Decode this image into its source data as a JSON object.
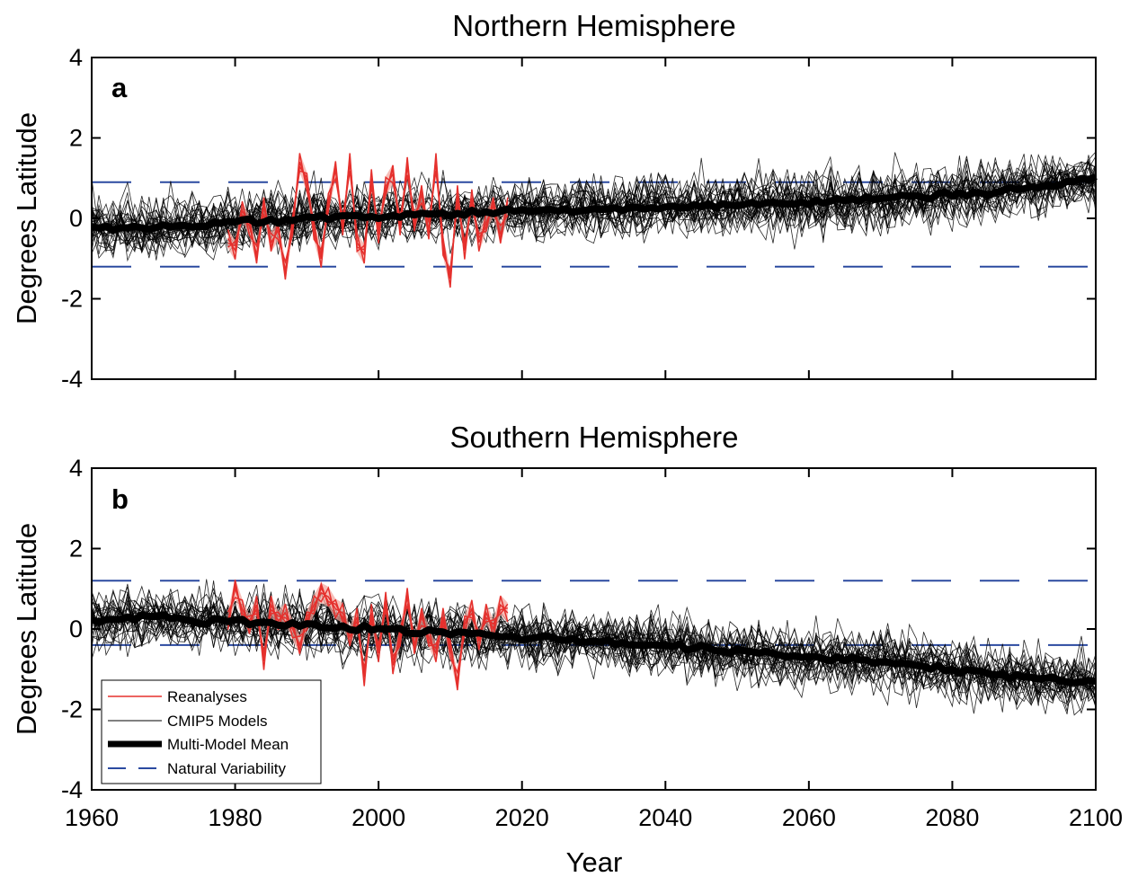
{
  "chart_data": [
    {
      "type": "line",
      "title": "Northern Hemisphere",
      "panel_label": "a",
      "xlabel": "",
      "ylabel": "Degrees Latitude",
      "xlim": [
        1960,
        2100
      ],
      "ylim": [
        -4,
        4
      ],
      "x_ticks": [
        1960,
        1980,
        2000,
        2020,
        2040,
        2060,
        2080,
        2100
      ],
      "y_ticks": [
        4,
        2,
        0,
        -2,
        -4
      ],
      "grid": false,
      "natural_variability": [
        -1.2,
        0.9
      ],
      "series": [
        {
          "name": "Multi-Model Mean",
          "color": "#000000",
          "x": [
            1960,
            1965,
            1970,
            1975,
            1980,
            1985,
            1990,
            1995,
            2000,
            2005,
            2010,
            2015,
            2020,
            2025,
            2030,
            2035,
            2040,
            2045,
            2050,
            2055,
            2060,
            2065,
            2070,
            2075,
            2080,
            2085,
            2090,
            2095,
            2100
          ],
          "values": [
            -0.2,
            -0.25,
            -0.2,
            -0.15,
            -0.1,
            -0.05,
            0.0,
            0.05,
            0.05,
            0.1,
            0.1,
            0.15,
            0.2,
            0.2,
            0.25,
            0.25,
            0.3,
            0.3,
            0.35,
            0.35,
            0.4,
            0.45,
            0.5,
            0.55,
            0.6,
            0.65,
            0.75,
            0.85,
            1.0
          ]
        },
        {
          "name": "Reanalyses",
          "color": "#e5302d",
          "x": [
            1979,
            1980,
            1981,
            1982,
            1983,
            1984,
            1985,
            1986,
            1987,
            1988,
            1989,
            1990,
            1991,
            1992,
            1993,
            1994,
            1995,
            1996,
            1997,
            1998,
            1999,
            2000,
            2001,
            2002,
            2003,
            2004,
            2005,
            2006,
            2007,
            2008,
            2009,
            2010,
            2011,
            2012,
            2013,
            2014,
            2015,
            2016,
            2017,
            2018
          ],
          "values": [
            -0.5,
            -0.8,
            0.2,
            -0.2,
            -0.9,
            0.3,
            -0.6,
            -0.3,
            -1.3,
            -0.2,
            1.4,
            0.9,
            -0.3,
            -1.0,
            0.4,
            1.2,
            -0.2,
            1.4,
            -0.6,
            -0.9,
            1.0,
            -0.4,
            0.8,
            1.1,
            -0.2,
            1.3,
            -0.1,
            0.6,
            -0.3,
            1.4,
            -0.7,
            -1.5,
            0.6,
            -0.8,
            0.5,
            -0.6,
            -0.1,
            0.3,
            -0.4,
            0.3
          ]
        }
      ],
      "models_label": "CMIP5 Models"
    },
    {
      "type": "line",
      "title": "Southern Hemisphere",
      "panel_label": "b",
      "xlabel": "Year",
      "ylabel": "Degrees Latitude",
      "xlim": [
        1960,
        2100
      ],
      "ylim": [
        -4,
        4
      ],
      "x_ticks": [
        1960,
        1980,
        2000,
        2020,
        2040,
        2060,
        2080,
        2100
      ],
      "y_ticks": [
        4,
        2,
        0,
        -2,
        -4
      ],
      "grid": false,
      "natural_variability": [
        -0.4,
        1.2
      ],
      "series": [
        {
          "name": "Multi-Model Mean",
          "color": "#000000",
          "x": [
            1960,
            1965,
            1970,
            1975,
            1980,
            1985,
            1990,
            1995,
            2000,
            2005,
            2010,
            2015,
            2020,
            2025,
            2030,
            2035,
            2040,
            2045,
            2050,
            2055,
            2060,
            2065,
            2070,
            2075,
            2080,
            2085,
            2090,
            2095,
            2100
          ],
          "values": [
            0.25,
            0.25,
            0.3,
            0.2,
            0.2,
            0.15,
            0.1,
            0.05,
            0.0,
            -0.05,
            -0.1,
            -0.15,
            -0.2,
            -0.25,
            -0.3,
            -0.35,
            -0.4,
            -0.5,
            -0.55,
            -0.65,
            -0.7,
            -0.75,
            -0.8,
            -0.9,
            -1.0,
            -1.1,
            -1.2,
            -1.3,
            -1.35
          ]
        },
        {
          "name": "Reanalyses",
          "color": "#e5302d",
          "x": [
            1979,
            1980,
            1981,
            1982,
            1983,
            1984,
            1985,
            1986,
            1987,
            1988,
            1989,
            1990,
            1991,
            1992,
            1993,
            1994,
            1995,
            1996,
            1997,
            1998,
            1999,
            2000,
            2001,
            2002,
            2003,
            2004,
            2005,
            2006,
            2007,
            2008,
            2009,
            2010,
            2011,
            2012,
            2013,
            2014,
            2015,
            2016,
            2017,
            2018
          ],
          "values": [
            0.2,
            1.0,
            0.5,
            0.1,
            0.6,
            -0.8,
            0.6,
            0.2,
            0.4,
            0.0,
            -0.4,
            0.2,
            0.6,
            0.9,
            0.8,
            0.5,
            0.4,
            -0.2,
            0.3,
            -1.2,
            0.4,
            -0.6,
            0.7,
            -0.9,
            -0.2,
            0.8,
            -0.4,
            0.3,
            -0.2,
            -0.6,
            0.3,
            -0.5,
            -1.3,
            0.1,
            0.5,
            -0.3,
            0.4,
            0.0,
            0.6,
            0.4
          ]
        }
      ],
      "models_label": "CMIP5 Models"
    }
  ],
  "legend": {
    "placement": "bottom-left",
    "entries": [
      {
        "label": "Reanalyses",
        "color": "#e5302d",
        "style": "thin-red"
      },
      {
        "label": "CMIP5 Models",
        "color": "#000000",
        "style": "thin-black"
      },
      {
        "label": "Multi-Model Mean",
        "color": "#000000",
        "style": "thick-black"
      },
      {
        "label": "Natural Variability",
        "color": "#2b4aa0",
        "style": "dashed-blue"
      }
    ]
  },
  "colors": {
    "reanalyses": "#e5302d",
    "reanalyses_fill": "#f4a29a",
    "models": "#000000",
    "natural_variability": "#2b4aa0"
  }
}
